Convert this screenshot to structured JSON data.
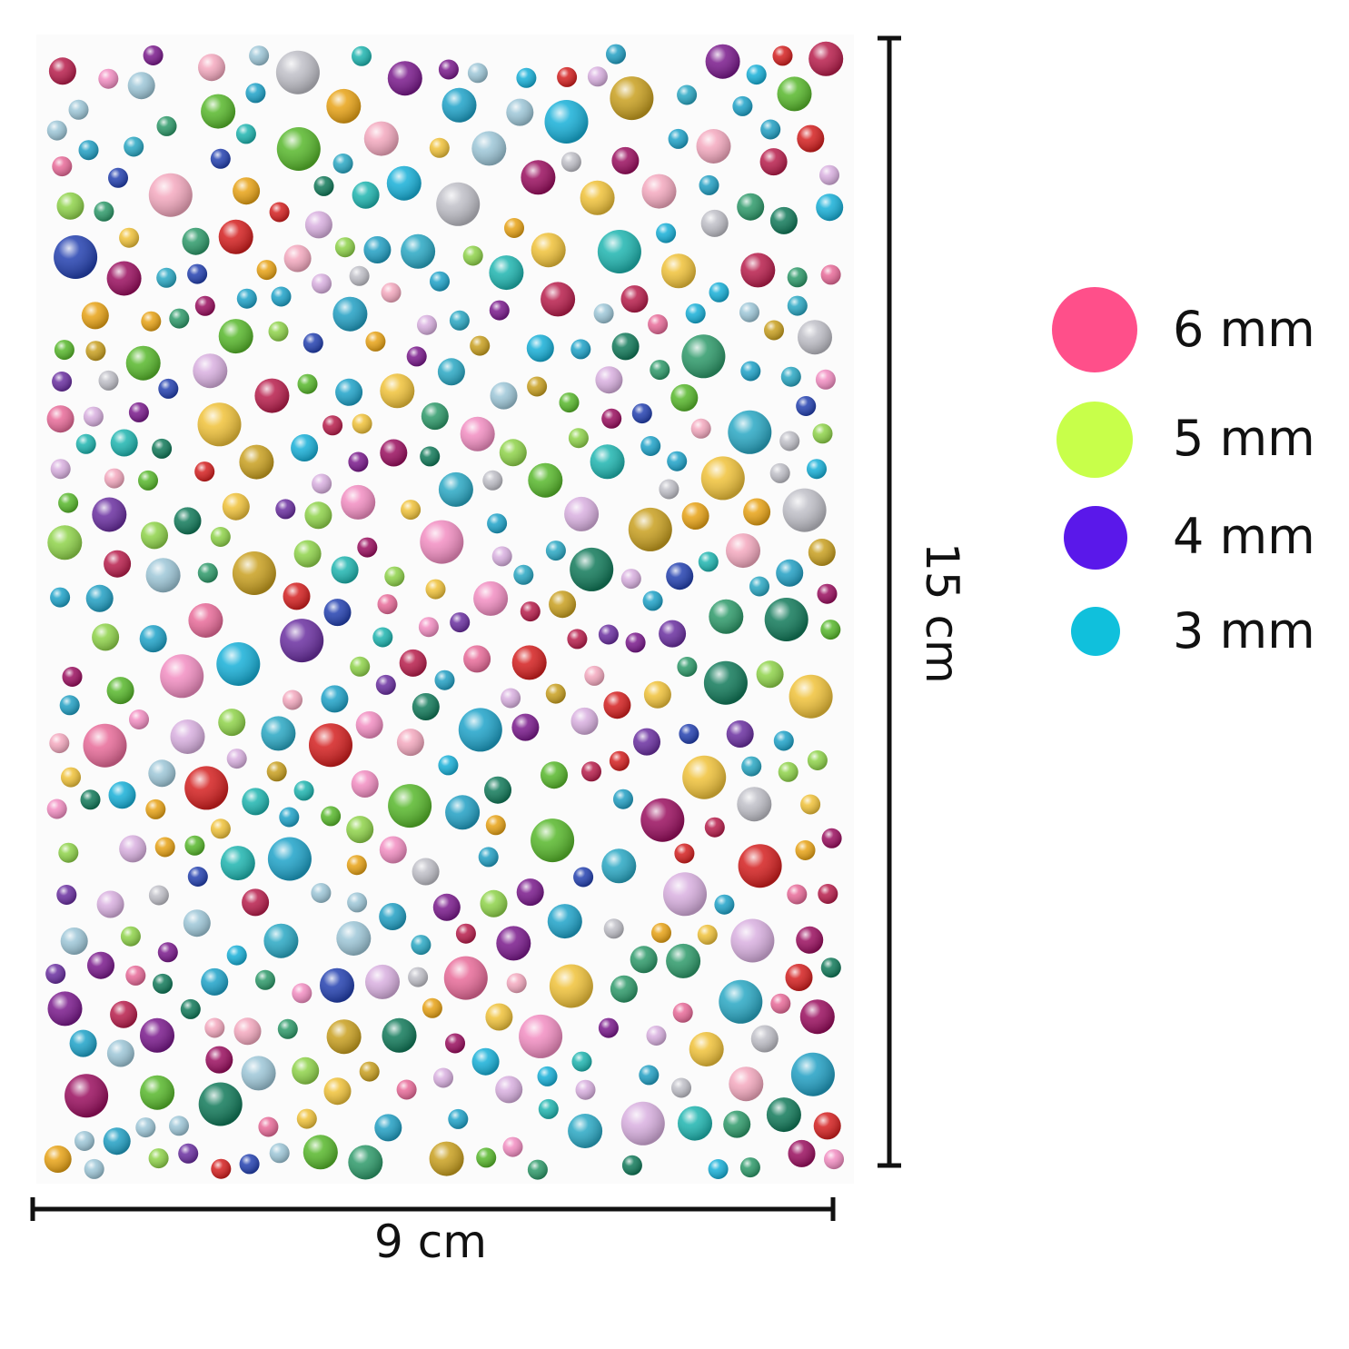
{
  "product_photo": {
    "subject": "rhinestone-sticker-sheet",
    "gem_colors": [
      "#e8a316",
      "#7a1a8c",
      "#9ec7d8",
      "#58b82c",
      "#c0c0c8",
      "#1fa3c9",
      "#2aa8c4",
      "#e86b99",
      "#8fd34a",
      "#22a0c4",
      "#1fb5b0",
      "#f0c23a",
      "#9a0f5f",
      "#b81e4c",
      "#2e9a6a",
      "#127a5a",
      "#d42020",
      "#6a2fa0",
      "#2441b0",
      "#f28ec2",
      "#d9b0e0",
      "#c9a020",
      "#f4a9bf",
      "#18b0d8"
    ]
  },
  "dimensions": {
    "width_label": "9 cm",
    "height_label": "15 cm"
  },
  "legend": {
    "items": [
      {
        "label": "6 mm",
        "color": "#ff4f8a"
      },
      {
        "label": "5 mm",
        "color": "#c8ff4a"
      },
      {
        "label": "4 mm",
        "color": "#5a18ea"
      },
      {
        "label": "3 mm",
        "color": "#10c0dc"
      }
    ]
  }
}
